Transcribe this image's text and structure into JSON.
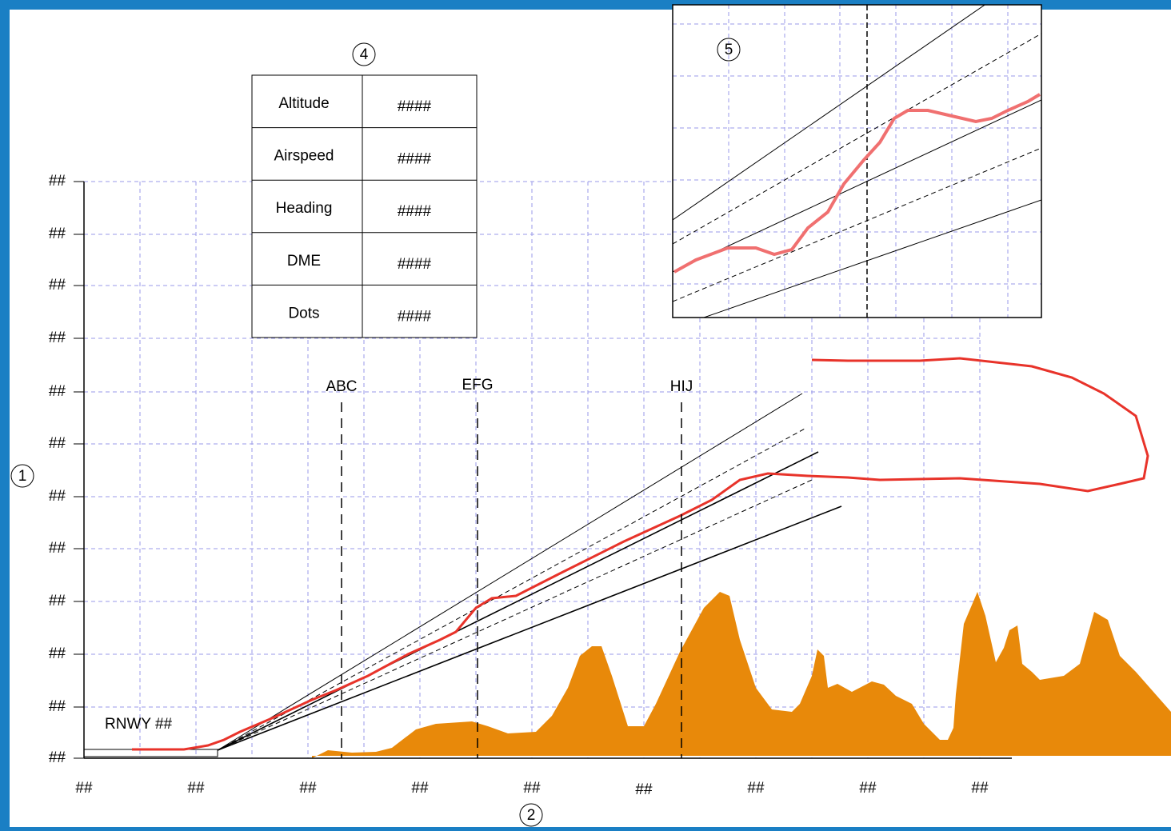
{
  "callouts": {
    "y_axis": "1",
    "x_axis": "2",
    "table": "4",
    "inset": "5"
  },
  "y_axis_labels": [
    "##",
    "##",
    "##",
    "##",
    "##",
    "##",
    "##",
    "##",
    "##",
    "##",
    "##",
    "##"
  ],
  "x_axis_labels": [
    "##",
    "##",
    "##",
    "##",
    "##",
    "##",
    "##",
    "##",
    "##"
  ],
  "table": {
    "rows": [
      [
        "Altitude",
        "####"
      ],
      [
        "Airspeed",
        "####"
      ],
      [
        "Heading",
        "####"
      ],
      [
        "DME",
        "####"
      ],
      [
        "Dots",
        "####"
      ]
    ]
  },
  "fixes": [
    "ABC",
    "EFG",
    "HIJ"
  ],
  "runway": "RNWY ##"
}
